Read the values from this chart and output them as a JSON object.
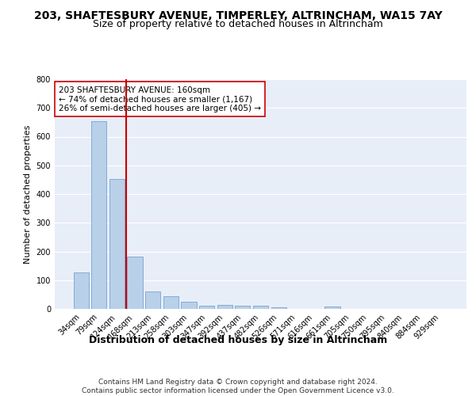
{
  "title": "203, SHAFTESBURY AVENUE, TIMPERLEY, ALTRINCHAM, WA15 7AY",
  "subtitle": "Size of property relative to detached houses in Altrincham",
  "xlabel": "Distribution of detached houses by size in Altrincham",
  "ylabel": "Number of detached properties",
  "categories": [
    "34sqm",
    "79sqm",
    "124sqm",
    "168sqm",
    "213sqm",
    "258sqm",
    "303sqm",
    "347sqm",
    "392sqm",
    "437sqm",
    "482sqm",
    "526sqm",
    "571sqm",
    "616sqm",
    "661sqm",
    "705sqm",
    "750sqm",
    "795sqm",
    "840sqm",
    "884sqm",
    "929sqm"
  ],
  "values": [
    128,
    655,
    453,
    183,
    60,
    43,
    25,
    12,
    13,
    12,
    10,
    6,
    0,
    0,
    8,
    0,
    0,
    0,
    0,
    0,
    0
  ],
  "bar_color": "#b8d0e8",
  "bar_edge_color": "#6699cc",
  "vline_color": "#cc0000",
  "annotation_text": "203 SHAFTESBURY AVENUE: 160sqm\n← 74% of detached houses are smaller (1,167)\n26% of semi-detached houses are larger (405) →",
  "annotation_box_color": "white",
  "annotation_box_edge": "#cc0000",
  "ylim": [
    0,
    800
  ],
  "yticks": [
    0,
    100,
    200,
    300,
    400,
    500,
    600,
    700,
    800
  ],
  "background_color": "#e8eef8",
  "grid_color": "white",
  "footer": "Contains HM Land Registry data © Crown copyright and database right 2024.\nContains public sector information licensed under the Open Government Licence v3.0.",
  "title_fontsize": 10,
  "subtitle_fontsize": 9,
  "xlabel_fontsize": 9,
  "ylabel_fontsize": 8,
  "tick_fontsize": 7,
  "annotation_fontsize": 7.5,
  "footer_fontsize": 6.5
}
